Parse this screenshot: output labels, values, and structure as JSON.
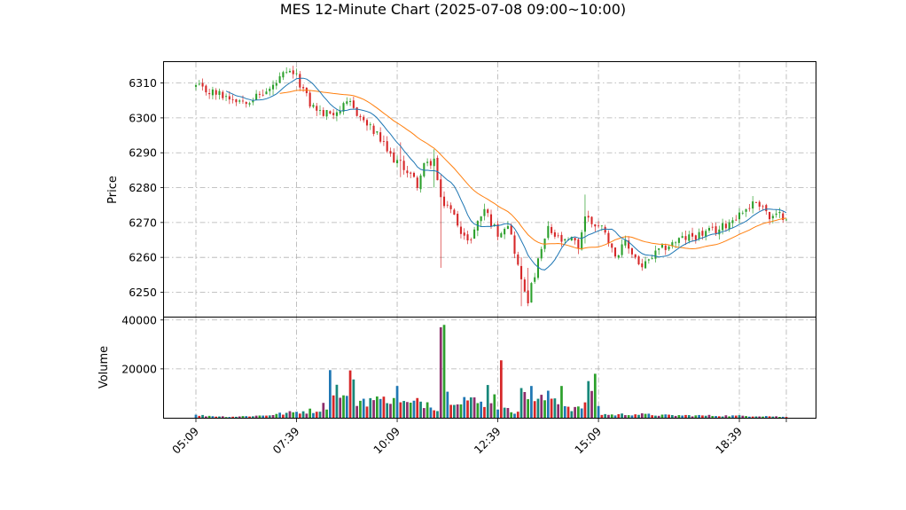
{
  "chart_data": {
    "type": "candlestick",
    "title": "MES 12-Minute Chart (2025-07-08 09:00~10:00)",
    "price_panel": {
      "ylabel": "Price",
      "ylim": [
        6243,
        6316
      ],
      "yticks": [
        6250,
        6260,
        6270,
        6280,
        6290,
        6300,
        6310
      ],
      "grid": true,
      "up_color": "#2ca02c",
      "down_color": "#d62728",
      "ma_fast_color": "#1f77b4",
      "ma_slow_color": "#ff7f0e"
    },
    "volume_panel": {
      "ylabel": "Volume",
      "ylim": [
        0,
        41000
      ],
      "yticks": [
        20000,
        40000
      ],
      "ytick_labels": [
        "20000",
        "40000"
      ],
      "grid": true,
      "colors": [
        "#1f77b4",
        "#d62728",
        "#17877a",
        "#8c2d6b",
        "#2ca02c"
      ]
    },
    "x_axis": {
      "start_time": "05:09",
      "bar_minutes": 5,
      "tick_labels": [
        "05:09",
        "07:39",
        "10:09",
        "12:39",
        "15:09",
        "18:39"
      ],
      "tick_bars": [
        0,
        30,
        60,
        90,
        120,
        162
      ]
    },
    "price_anchors": [
      [
        0,
        6309
      ],
      [
        2,
        6308
      ],
      [
        6,
        6307
      ],
      [
        10,
        6306
      ],
      [
        14,
        6305
      ],
      [
        18,
        6306
      ],
      [
        22,
        6308
      ],
      [
        26,
        6312
      ],
      [
        29,
        6313
      ],
      [
        31,
        6310
      ],
      [
        34,
        6304
      ],
      [
        38,
        6301
      ],
      [
        42,
        6302
      ],
      [
        46,
        6304
      ],
      [
        50,
        6299
      ],
      [
        54,
        6295
      ],
      [
        58,
        6289
      ],
      [
        62,
        6286
      ],
      [
        66,
        6281
      ],
      [
        68,
        6286
      ],
      [
        71,
        6288
      ],
      [
        73,
        6276
      ],
      [
        75,
        6275
      ],
      [
        78,
        6270
      ],
      [
        81,
        6264
      ],
      [
        84,
        6270
      ],
      [
        86,
        6274
      ],
      [
        88,
        6270
      ],
      [
        90,
        6267
      ],
      [
        93,
        6270
      ],
      [
        95,
        6262
      ],
      [
        97,
        6253
      ],
      [
        99,
        6248
      ],
      [
        101,
        6255
      ],
      [
        103,
        6262
      ],
      [
        105,
        6268
      ],
      [
        107,
        6266
      ],
      [
        110,
        6264
      ],
      [
        112,
        6265
      ],
      [
        114,
        6263
      ],
      [
        116,
        6272
      ],
      [
        118,
        6270
      ],
      [
        120,
        6269
      ],
      [
        122,
        6268
      ],
      [
        124,
        6262
      ],
      [
        126,
        6261
      ],
      [
        128,
        6264
      ],
      [
        131,
        6260
      ],
      [
        133,
        6257
      ],
      [
        135,
        6259
      ],
      [
        137,
        6261
      ],
      [
        140,
        6263
      ],
      [
        144,
        6265
      ],
      [
        148,
        6266
      ],
      [
        152,
        6267
      ],
      [
        156,
        6268
      ],
      [
        160,
        6271
      ],
      [
        164,
        6274
      ],
      [
        167,
        6276
      ],
      [
        169,
        6275
      ],
      [
        171,
        6271
      ],
      [
        174,
        6272
      ],
      [
        176,
        6272
      ]
    ],
    "volume_anchors": [
      [
        0,
        1000
      ],
      [
        10,
        400
      ],
      [
        20,
        900
      ],
      [
        28,
        2000
      ],
      [
        31,
        2500
      ],
      [
        36,
        3000
      ],
      [
        39,
        5500
      ],
      [
        40,
        19500
      ],
      [
        41,
        8000
      ],
      [
        44,
        7500
      ],
      [
        46,
        16800
      ],
      [
        48,
        7000
      ],
      [
        52,
        7500
      ],
      [
        55,
        6500
      ],
      [
        56,
        12200
      ],
      [
        58,
        6500
      ],
      [
        64,
        5500
      ],
      [
        67,
        6500
      ],
      [
        70,
        6000
      ],
      [
        72,
        4000
      ],
      [
        73,
        37000
      ],
      [
        74,
        38000
      ],
      [
        75,
        9000
      ],
      [
        80,
        8000
      ],
      [
        84,
        6000
      ],
      [
        88,
        5000
      ],
      [
        89,
        13000
      ],
      [
        90,
        4000
      ],
      [
        93,
        3000
      ],
      [
        95,
        2500
      ],
      [
        96,
        4000
      ],
      [
        97,
        14500
      ],
      [
        98,
        8000
      ],
      [
        102,
        7000
      ],
      [
        106,
        8500
      ],
      [
        110,
        5000
      ],
      [
        114,
        3500
      ],
      [
        116,
        6000
      ],
      [
        118,
        12000
      ],
      [
        119,
        18000
      ],
      [
        120,
        4000
      ],
      [
        121,
        1500
      ],
      [
        124,
        1200
      ],
      [
        130,
        1500
      ],
      [
        140,
        1000
      ],
      [
        150,
        900
      ],
      [
        160,
        800
      ],
      [
        170,
        700
      ],
      [
        176,
        300
      ]
    ],
    "volume_spikes": [
      [
        42,
        13500
      ],
      [
        60,
        13000
      ],
      [
        87,
        13400
      ],
      [
        91,
        23500
      ],
      [
        100,
        13000
      ],
      [
        109,
        13000
      ],
      [
        117,
        15000
      ]
    ],
    "wick_spikes": [
      [
        73,
        6257,
        6278
      ],
      [
        97,
        6246,
        6260
      ],
      [
        99,
        6246,
        6257
      ],
      [
        116,
        6264,
        6278
      ],
      [
        71,
        6280,
        6291
      ],
      [
        61,
        6283,
        6293
      ]
    ],
    "ma_fast_window": 10,
    "ma_slow_window": 26
  }
}
